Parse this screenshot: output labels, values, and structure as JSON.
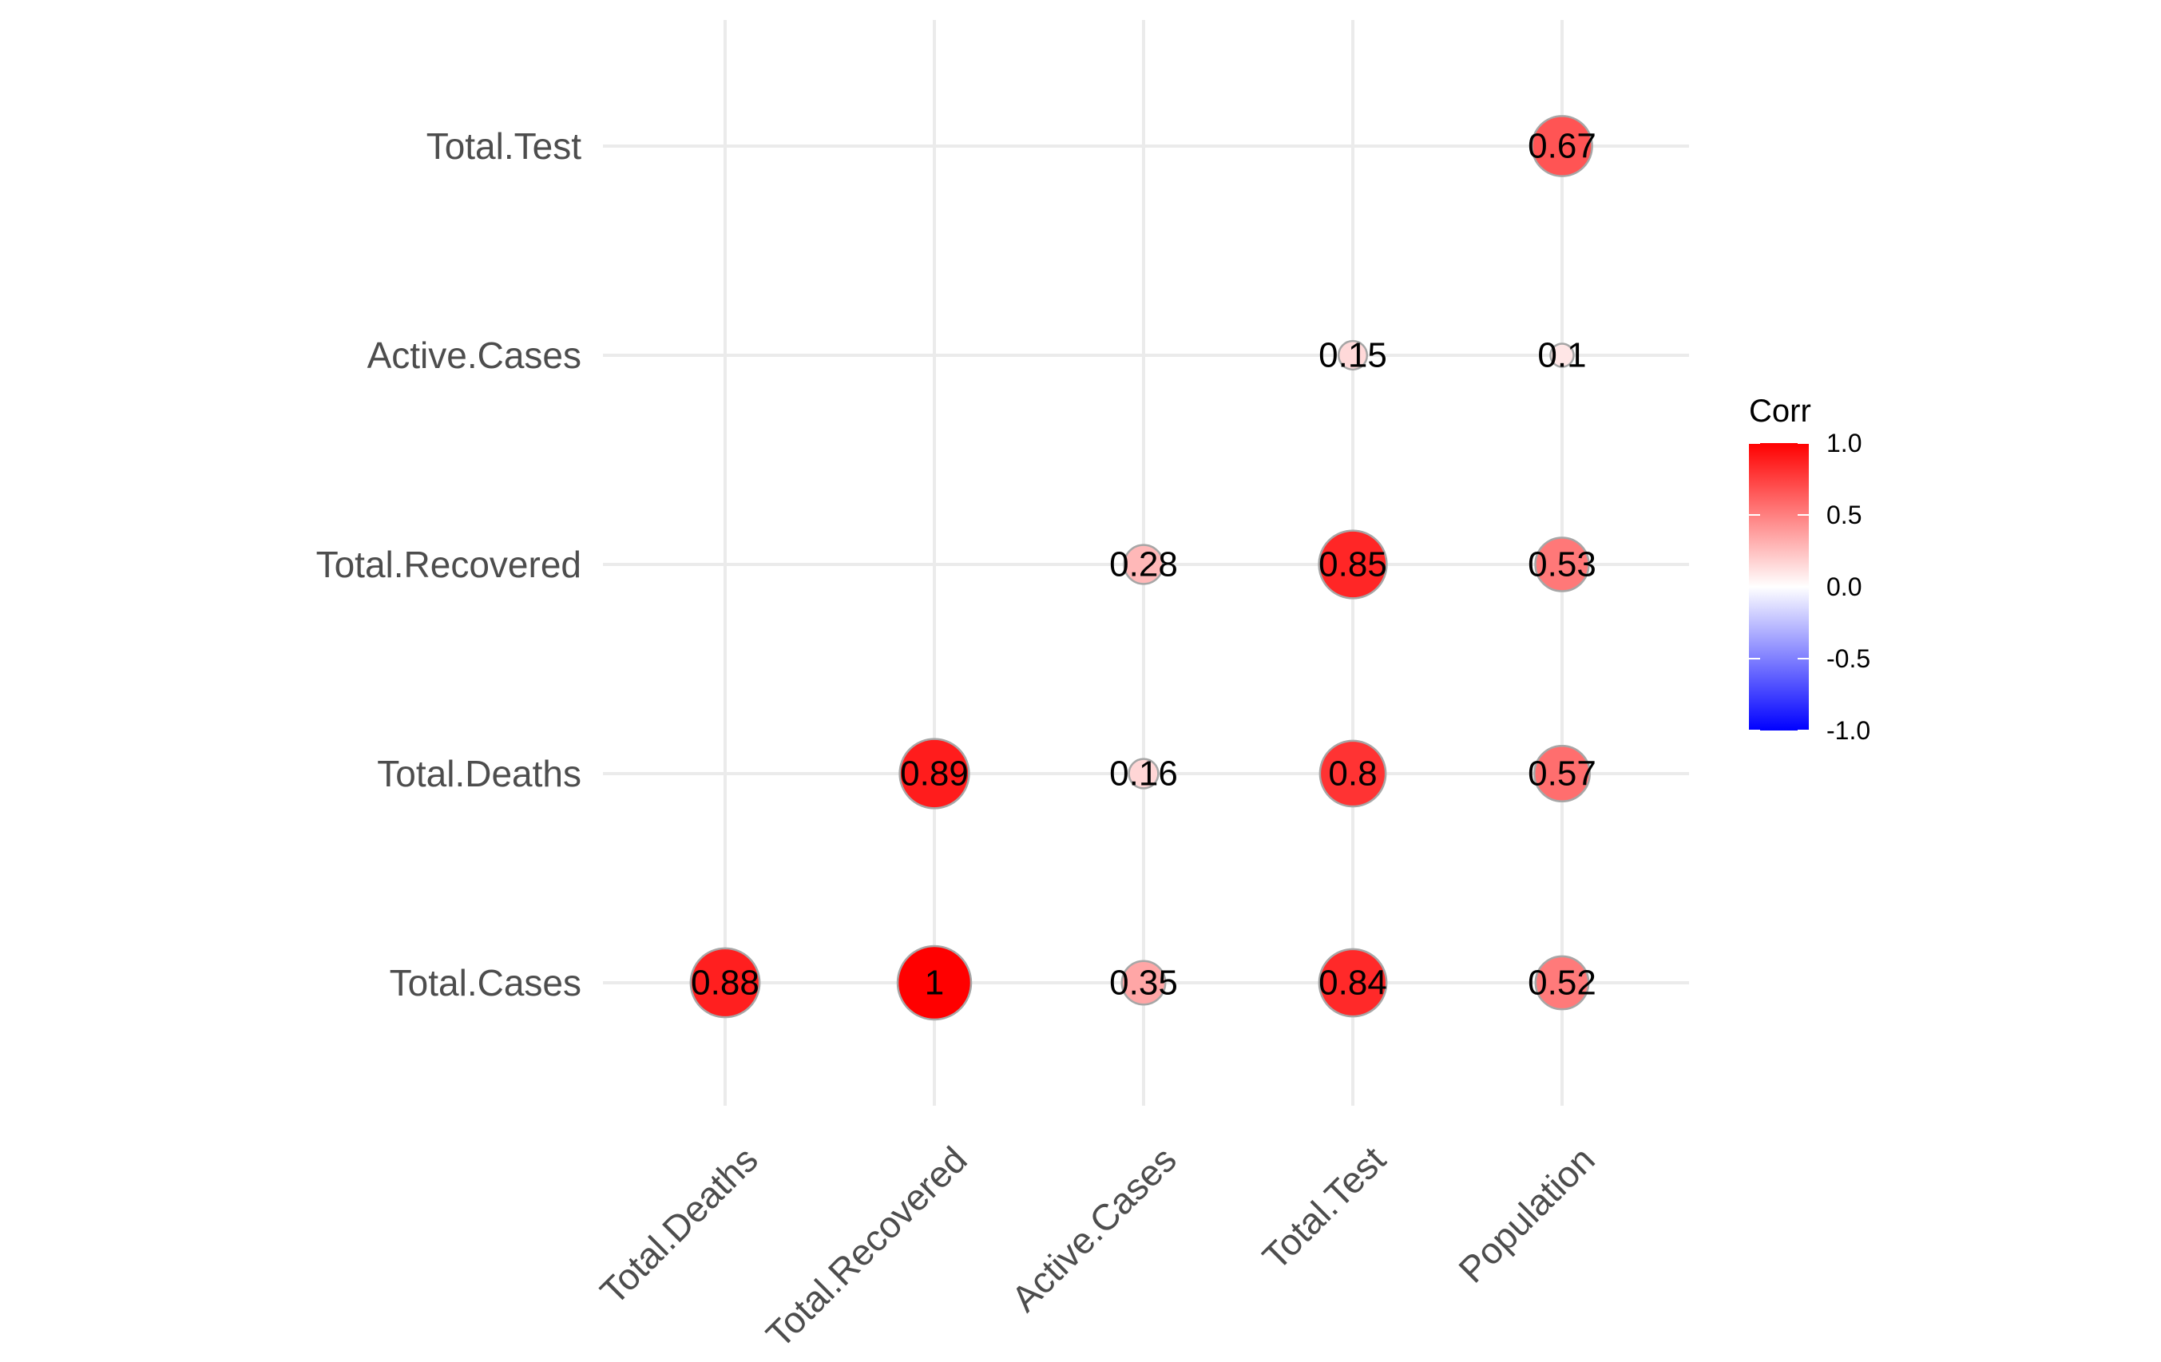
{
  "chart_data": {
    "type": "scatter",
    "subtype": "correlation-matrix-lower-triangle",
    "x_categories": [
      "Total.Deaths",
      "Total.Recovered",
      "Active.Cases",
      "Total.Test",
      "Population"
    ],
    "y_categories": [
      "Total.Cases",
      "Total.Deaths",
      "Total.Recovered",
      "Active.Cases",
      "Total.Test"
    ],
    "cells": [
      {
        "x": "Total.Deaths",
        "y": "Total.Cases",
        "value": 0.88,
        "label": "0.88"
      },
      {
        "x": "Total.Recovered",
        "y": "Total.Cases",
        "value": 1.0,
        "label": "1"
      },
      {
        "x": "Active.Cases",
        "y": "Total.Cases",
        "value": 0.35,
        "label": "0.35"
      },
      {
        "x": "Total.Test",
        "y": "Total.Cases",
        "value": 0.84,
        "label": "0.84"
      },
      {
        "x": "Population",
        "y": "Total.Cases",
        "value": 0.52,
        "label": "0.52"
      },
      {
        "x": "Total.Recovered",
        "y": "Total.Deaths",
        "value": 0.89,
        "label": "0.89"
      },
      {
        "x": "Active.Cases",
        "y": "Total.Deaths",
        "value": 0.16,
        "label": "0.16"
      },
      {
        "x": "Total.Test",
        "y": "Total.Deaths",
        "value": 0.8,
        "label": "0.8"
      },
      {
        "x": "Population",
        "y": "Total.Deaths",
        "value": 0.57,
        "label": "0.57"
      },
      {
        "x": "Active.Cases",
        "y": "Total.Recovered",
        "value": 0.28,
        "label": "0.28"
      },
      {
        "x": "Total.Test",
        "y": "Total.Recovered",
        "value": 0.85,
        "label": "0.85"
      },
      {
        "x": "Population",
        "y": "Total.Recovered",
        "value": 0.53,
        "label": "0.53"
      },
      {
        "x": "Total.Test",
        "y": "Active.Cases",
        "value": 0.15,
        "label": "0.15"
      },
      {
        "x": "Population",
        "y": "Active.Cases",
        "value": 0.1,
        "label": "0.1"
      },
      {
        "x": "Population",
        "y": "Total.Test",
        "value": 0.67,
        "label": "0.67"
      }
    ],
    "legend": {
      "title": "Corr",
      "placement": "right",
      "range": [
        -1,
        1
      ],
      "ticks": [
        1.0,
        0.5,
        0.0,
        -0.5,
        -1.0
      ],
      "tick_labels": [
        "1.0",
        "0.5",
        "0.0",
        "-0.5",
        "-1.0"
      ],
      "colors": {
        "low": "#0000ff",
        "mid": "#ffffff",
        "high": "#ff0000"
      }
    },
    "grid": true
  }
}
